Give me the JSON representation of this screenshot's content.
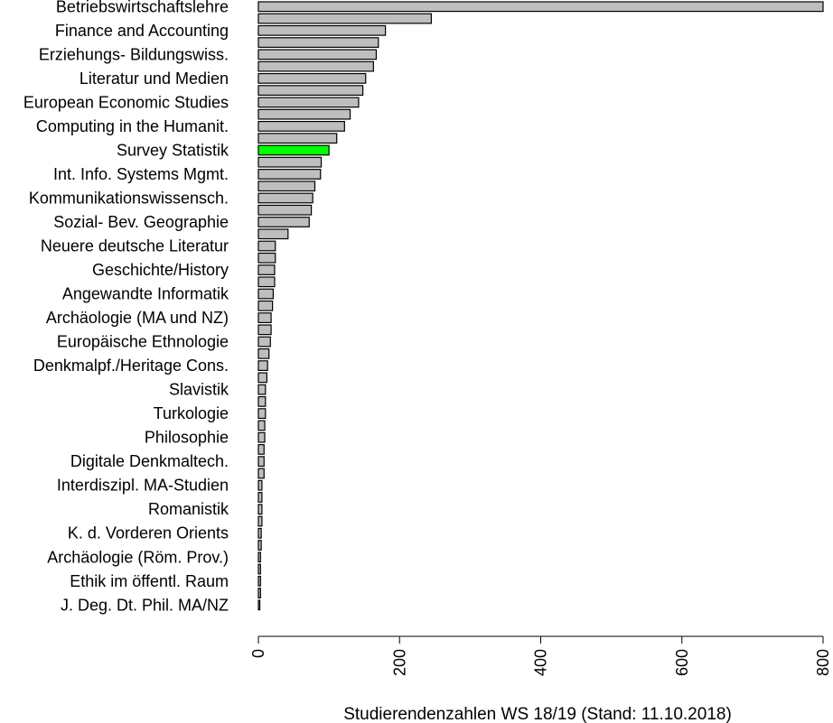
{
  "chart_data": {
    "type": "bar",
    "orientation": "horizontal",
    "xlabel": "Studierendenzahlen WS 18/19 (Stand: 11.10.2018)",
    "xlim": [
      0,
      800
    ],
    "xticks": [
      "0",
      "200",
      "400",
      "600",
      "800"
    ],
    "grid": false,
    "bar_color": "#bebebe",
    "highlight_color": "#00ff00",
    "highlight_label": "Survey Statistik",
    "categories": [
      "Betriebswirtschaftslehre",
      "",
      "Finance and Accounting",
      "",
      "Erziehungs- Bildungswiss.",
      "",
      "Literatur und Medien",
      "",
      "European Economic Studies",
      "",
      "Computing in the Humanit.",
      "",
      "Survey Statistik",
      "",
      "Int. Info. Systems Mgmt.",
      "",
      "Kommunikationswissensch.",
      "",
      "Sozial- Bev. Geographie",
      "",
      "Neuere deutsche Literatur",
      "",
      "Geschichte/History",
      "",
      "Angewandte Informatik",
      "",
      "Archäologie (MA und NZ)",
      "",
      "Europäische Ethnologie",
      "",
      "Denkmalpf./Heritage Cons.",
      "",
      "Slavistik",
      "",
      "Turkologie",
      "",
      "Philosophie",
      "",
      "Digitale Denkmaltech.",
      "",
      "Interdiszipl. MA-Studien",
      "",
      "Romanistik",
      "",
      "K. d. Vorderen Orients",
      "",
      "Archäologie (Röm. Prov.)",
      "",
      "Ethik im öffentl. Raum",
      "",
      "J. Deg. Dt. Phil. MA/NZ"
    ],
    "values": [
      800,
      245,
      180,
      170,
      167,
      163,
      152,
      148,
      142,
      130,
      122,
      111,
      100,
      89,
      88,
      80,
      77,
      75,
      72,
      42,
      24,
      24,
      23,
      23,
      21,
      20,
      18,
      18,
      17,
      15,
      13,
      12,
      10,
      10,
      10,
      9,
      9,
      8,
      8,
      8,
      5,
      5,
      5,
      5,
      4,
      4,
      3,
      3,
      3,
      3,
      2
    ]
  }
}
